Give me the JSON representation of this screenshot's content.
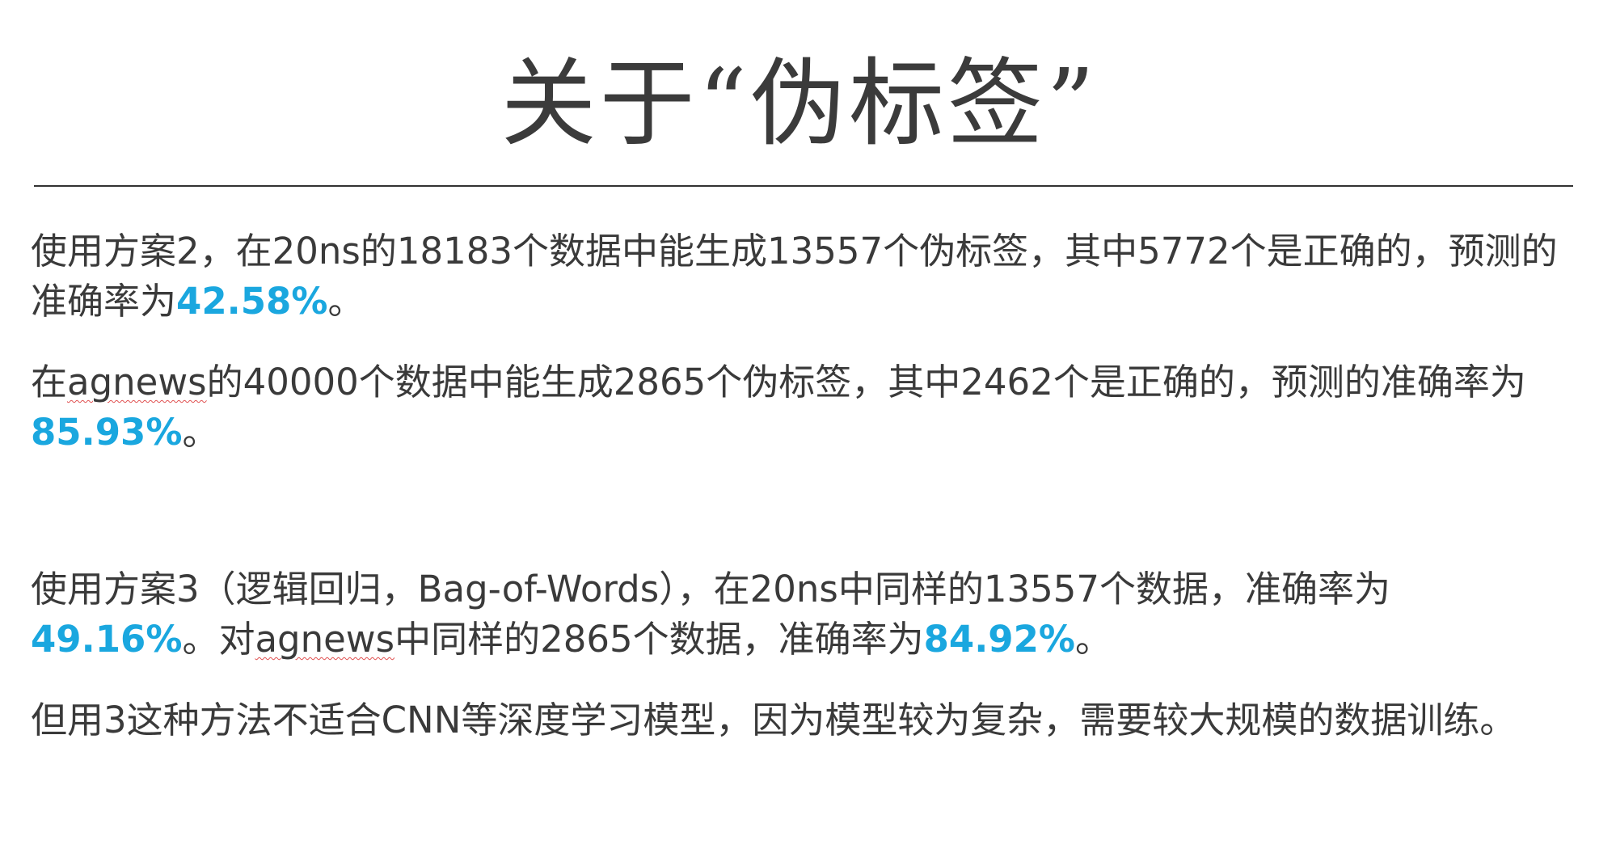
{
  "title": "关于“伪标签”",
  "p1": {
    "text": "使用方案2，在20ns的18183个数据中能生成13557个伪标签，其中5772个是正确的，预测的准确率为",
    "value": "42.58%",
    "end": "。"
  },
  "p2": {
    "pre": "在",
    "word": "agnews",
    "text": "的40000个数据中能生成2865个伪标签，其中2462个是正确的，预测的准确率为",
    "value": "85.93%",
    "end": "。"
  },
  "p3": {
    "text1": "使用方案3（逻辑回归，Bag-of-Words），在20ns中同样的13557个数据，准确率为",
    "value1": "49.16%",
    "mid": "。对",
    "word": "agnews",
    "text2": "中同样的2865个数据，准确率为",
    "value2": "84.92%",
    "end": "。"
  },
  "p4": {
    "text": "但用3这种方法不适合CNN等深度学习模型，因为模型较为复杂，需要较大规模的数据训练。"
  },
  "colors": {
    "highlight": "#1aa7df",
    "text": "#3a3a3a",
    "spellcheck_underline": "#e05050"
  }
}
